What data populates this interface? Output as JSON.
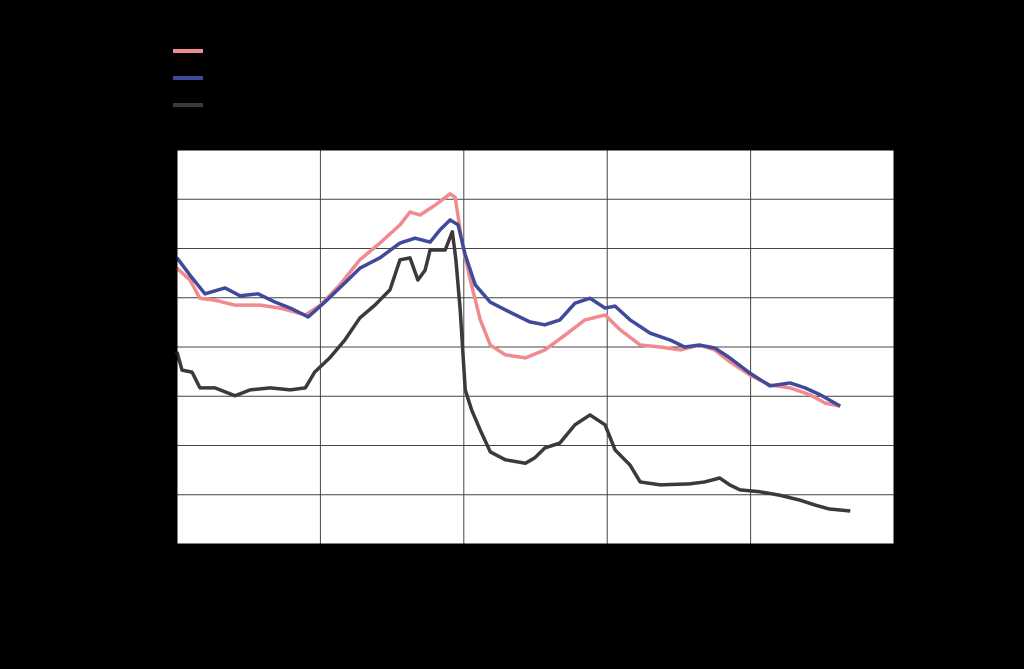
{
  "chart_data": {
    "type": "line",
    "grid": true,
    "xlim": [
      0,
      100
    ],
    "xticks": [
      0,
      20,
      40,
      60,
      80,
      100
    ],
    "ylim": [
      0,
      80
    ],
    "yticks": [
      0,
      10,
      20,
      30,
      40,
      50,
      60,
      70,
      80
    ],
    "series": [
      {
        "color": "#f08a8f",
        "x": [
          0,
          1.8,
          3.2,
          5.3,
          8.1,
          11.6,
          14.4,
          17.9,
          20,
          22.7,
          25.5,
          28.3,
          31.1,
          32.5,
          33.9,
          36,
          38.1,
          38.8,
          39.7,
          40.9,
          42.3,
          43.7,
          45.8,
          48.6,
          51.3,
          54.1,
          56.9,
          59.7,
          61.8,
          64.6,
          67.4,
          70.2,
          72.9,
          75,
          77.1,
          79.9,
          82.7,
          85.5,
          88.3,
          90.4,
          92.5
        ],
        "values": [
          56.0,
          53.6,
          49.9,
          49.5,
          48.5,
          48.5,
          47.9,
          46.5,
          48.5,
          52.6,
          57.7,
          61.1,
          64.8,
          67.4,
          66.8,
          68.8,
          71.1,
          70.4,
          61.7,
          53.6,
          45.5,
          40.4,
          38.4,
          37.8,
          39.4,
          42.4,
          45.5,
          46.5,
          43.5,
          40.4,
          40.0,
          39.4,
          40.4,
          39.4,
          37.0,
          34.3,
          32.3,
          31.7,
          30.3,
          28.6,
          28.0
        ]
      },
      {
        "color": "#3f4a9a",
        "x": [
          0,
          1.8,
          3.9,
          6.7,
          8.8,
          11.3,
          13.7,
          15.8,
          18.3,
          20.6,
          23.4,
          25.5,
          28.3,
          31.1,
          33.2,
          35.3,
          36.7,
          38.1,
          39.2,
          40.2,
          41.6,
          43.7,
          46.4,
          49.2,
          51.3,
          53.4,
          55.5,
          57.6,
          59.7,
          61.1,
          63.2,
          66.0,
          68.8,
          70.8,
          72.9,
          75.0,
          77.1,
          79.9,
          82.7,
          85.5,
          87.6,
          89.7,
          92.5
        ],
        "values": [
          58.1,
          54.6,
          50.8,
          52.0,
          50.4,
          50.8,
          49.1,
          47.9,
          46.1,
          49.1,
          53.0,
          56.0,
          58.1,
          61.1,
          62.1,
          61.3,
          63.8,
          65.8,
          64.8,
          58.7,
          52.6,
          49.1,
          47.1,
          45.1,
          44.5,
          45.5,
          48.9,
          49.9,
          47.9,
          48.3,
          45.5,
          42.8,
          41.4,
          40.0,
          40.4,
          39.8,
          37.8,
          34.7,
          32.1,
          32.7,
          31.7,
          30.3,
          28.0
        ]
      },
      {
        "color": "#3a3a3a",
        "x": [
          0,
          0.7,
          2.1,
          3.2,
          5.3,
          8.1,
          10.2,
          13.0,
          15.8,
          17.9,
          19.2,
          21.3,
          23.4,
          25.5,
          27.6,
          29.7,
          31.1,
          32.5,
          33.6,
          34.6,
          35.3,
          37.4,
          38.4,
          38.9,
          39.5,
          40.2,
          41.1,
          42.3,
          43.7,
          45.8,
          48.6,
          49.9,
          51.3,
          53.4,
          55.5,
          57.6,
          59.7,
          61.1,
          63.2,
          64.6,
          67.4,
          71.5,
          73.6,
          75.7,
          77.1,
          78.5,
          81.3,
          84.1,
          86.9,
          89.0,
          91.0,
          93.9
        ],
        "values": [
          39.0,
          35.3,
          34.9,
          31.7,
          31.7,
          30.1,
          31.3,
          31.7,
          31.3,
          31.7,
          34.9,
          37.8,
          41.4,
          45.9,
          48.5,
          51.6,
          57.7,
          58.1,
          53.6,
          55.6,
          59.7,
          59.7,
          63.4,
          57.7,
          47.5,
          31.3,
          27.2,
          23.1,
          18.7,
          17.1,
          16.4,
          17.5,
          19.5,
          20.5,
          24.2,
          26.2,
          24.2,
          19.1,
          16.0,
          12.6,
          12.0,
          12.2,
          12.6,
          13.4,
          12.0,
          11.0,
          10.6,
          9.9,
          8.9,
          7.9,
          7.1,
          6.7
        ]
      }
    ]
  }
}
